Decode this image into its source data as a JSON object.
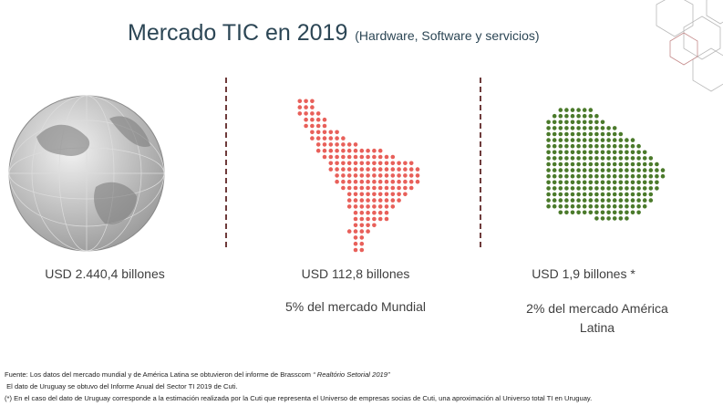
{
  "header": {
    "title": "Mercado TIC en 2019",
    "subtitle": "(Hardware, Software y servicios)"
  },
  "columns": [
    {
      "value": "USD 2.440,4 billones"
    },
    {
      "value": "USD 112,8 billones",
      "share": "5% del mercado Mundial"
    },
    {
      "value": "USD 1,9 billones *",
      "share": "2% del mercado América Latina"
    }
  ],
  "footnotes": [
    {
      "text": "Fuente: Los datos del mercado mundial y de América Latina se obtuvieron del informe de Brasscom ",
      "source": "“ Realtório Setorial 2019”"
    },
    {
      "text": " El dato de Uruguay se obtuvo del Informe Anual del Sector TI 2019 de Cuti."
    },
    {
      "text": "(*) En el caso del dato de Uruguay corresponde a la estimación realizada por la Cuti que representa el Universo de empresas socias de Cuti, una aproximación al Universo total TI en Uruguay."
    }
  ]
}
